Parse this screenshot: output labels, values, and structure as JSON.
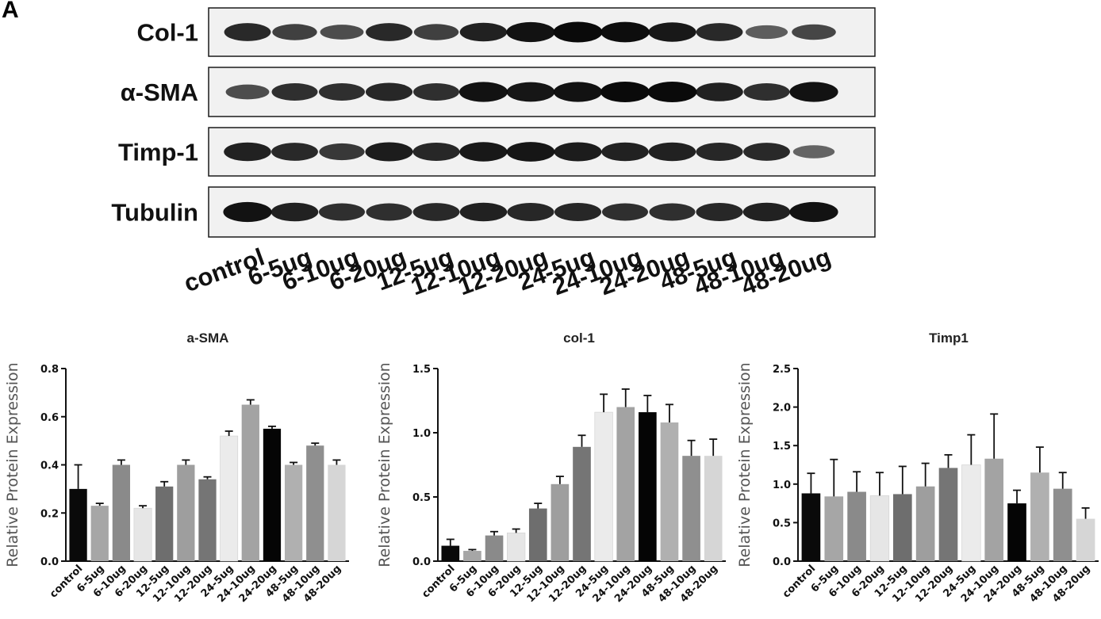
{
  "panel_label": "A",
  "blot": {
    "lanes": [
      "control",
      "6-5ug",
      "6-10ug",
      "6-20ug",
      "12-5ug",
      "12-10ug",
      "12-20ug",
      "24-5ug",
      "24-10ug",
      "24-20ug",
      "48-5ug",
      "48-10ug",
      "48-20ug"
    ],
    "rows": [
      {
        "label": "Col-1",
        "intensity": [
          0.8,
          0.65,
          0.55,
          0.8,
          0.65,
          0.85,
          0.95,
          1.0,
          0.98,
          0.9,
          0.8,
          0.45,
          0.6
        ]
      },
      {
        "label": "α-SMA",
        "intensity": [
          0.55,
          0.75,
          0.75,
          0.82,
          0.75,
          0.95,
          0.92,
          0.95,
          1.0,
          1.0,
          0.85,
          0.75,
          0.95
        ]
      },
      {
        "label": "Timp-1",
        "intensity": [
          0.85,
          0.8,
          0.7,
          0.88,
          0.82,
          0.9,
          0.92,
          0.88,
          0.85,
          0.85,
          0.82,
          0.8,
          0.4
        ]
      },
      {
        "label": "Tubulin",
        "intensity": [
          0.95,
          0.85,
          0.75,
          0.75,
          0.8,
          0.85,
          0.82,
          0.82,
          0.75,
          0.75,
          0.82,
          0.85,
          0.95
        ]
      }
    ]
  },
  "chart_data": [
    {
      "type": "bar",
      "title": "a-SMA",
      "ylabel": "Relative  Protein Expression",
      "xlabel": "",
      "ylim": [
        0,
        0.8
      ],
      "yticks": [
        "0.0",
        "0.2",
        "0.4",
        "0.6",
        "0.8"
      ],
      "ytick_values": [
        0,
        0.2,
        0.4,
        0.6,
        0.8
      ],
      "categories": [
        "control",
        "6-5ug",
        "6-10ug",
        "6-20ug",
        "12-5ug",
        "12-10ug",
        "12-20ug",
        "24-5ug",
        "24-10ug",
        "24-20ug",
        "48-5ug",
        "48-10ug",
        "48-20ug"
      ],
      "values": [
        0.3,
        0.23,
        0.4,
        0.22,
        0.31,
        0.4,
        0.34,
        0.52,
        0.65,
        0.55,
        0.4,
        0.48,
        0.4
      ],
      "errors": [
        0.1,
        0.01,
        0.02,
        0.01,
        0.02,
        0.02,
        0.01,
        0.02,
        0.02,
        0.01,
        0.01,
        0.01,
        0.02
      ],
      "colors": [
        "#0a0a0a",
        "#a6a6a6",
        "#8a8a8a",
        "#e6e6e6",
        "#6e6e6e",
        "#9e9e9e",
        "#757575",
        "#ebebeb",
        "#a3a3a3",
        "#050505",
        "#b0b0b0",
        "#8f8f8f",
        "#d6d6d6"
      ]
    },
    {
      "type": "bar",
      "title": "col-1",
      "ylabel": "Relative  Protein Expression",
      "xlabel": "",
      "ylim": [
        0,
        1.5
      ],
      "yticks": [
        "0.0",
        "0.5",
        "1.0",
        "1.5"
      ],
      "ytick_values": [
        0,
        0.5,
        1.0,
        1.5
      ],
      "categories": [
        "control",
        "6-5ug",
        "6-10ug",
        "6-20ug",
        "12-5ug",
        "12-10ug",
        "12-20ug",
        "24-5ug",
        "24-10ug",
        "24-20ug",
        "48-5ug",
        "48-10ug",
        "48-20ug"
      ],
      "values": [
        0.12,
        0.08,
        0.2,
        0.22,
        0.41,
        0.6,
        0.89,
        1.16,
        1.2,
        1.16,
        1.08,
        0.82,
        0.82
      ],
      "errors": [
        0.05,
        0.01,
        0.03,
        0.03,
        0.04,
        0.06,
        0.09,
        0.14,
        0.14,
        0.13,
        0.14,
        0.12,
        0.13
      ],
      "colors": [
        "#0a0a0a",
        "#a6a6a6",
        "#8a8a8a",
        "#e6e6e6",
        "#6e6e6e",
        "#9e9e9e",
        "#757575",
        "#ebebeb",
        "#a3a3a3",
        "#050505",
        "#b0b0b0",
        "#8f8f8f",
        "#d6d6d6"
      ]
    },
    {
      "type": "bar",
      "title": "Timp1",
      "ylabel": "Relative  Protein Expression",
      "xlabel": "",
      "ylim": [
        0,
        2.5
      ],
      "yticks": [
        "0.0",
        "0.5",
        "1.0",
        "1.5",
        "2.0",
        "2.5"
      ],
      "ytick_values": [
        0,
        0.5,
        1.0,
        1.5,
        2.0,
        2.5
      ],
      "categories": [
        "control",
        "6-5ug",
        "6-10ug",
        "6-20ug",
        "12-5ug",
        "12-10ug",
        "12-20ug",
        "24-5ug",
        "24-10ug",
        "24-20ug",
        "48-5ug",
        "48-10ug",
        "48-20ug"
      ],
      "values": [
        0.88,
        0.84,
        0.9,
        0.85,
        0.87,
        0.97,
        1.21,
        1.25,
        1.33,
        0.75,
        1.15,
        0.94,
        0.55
      ],
      "errors": [
        0.26,
        0.48,
        0.26,
        0.3,
        0.36,
        0.3,
        0.17,
        0.39,
        0.58,
        0.17,
        0.33,
        0.21,
        0.14
      ],
      "colors": [
        "#0a0a0a",
        "#a6a6a6",
        "#8a8a8a",
        "#e6e6e6",
        "#6e6e6e",
        "#9e9e9e",
        "#757575",
        "#ebebeb",
        "#a3a3a3",
        "#050505",
        "#b0b0b0",
        "#8f8f8f",
        "#d6d6d6"
      ]
    }
  ]
}
